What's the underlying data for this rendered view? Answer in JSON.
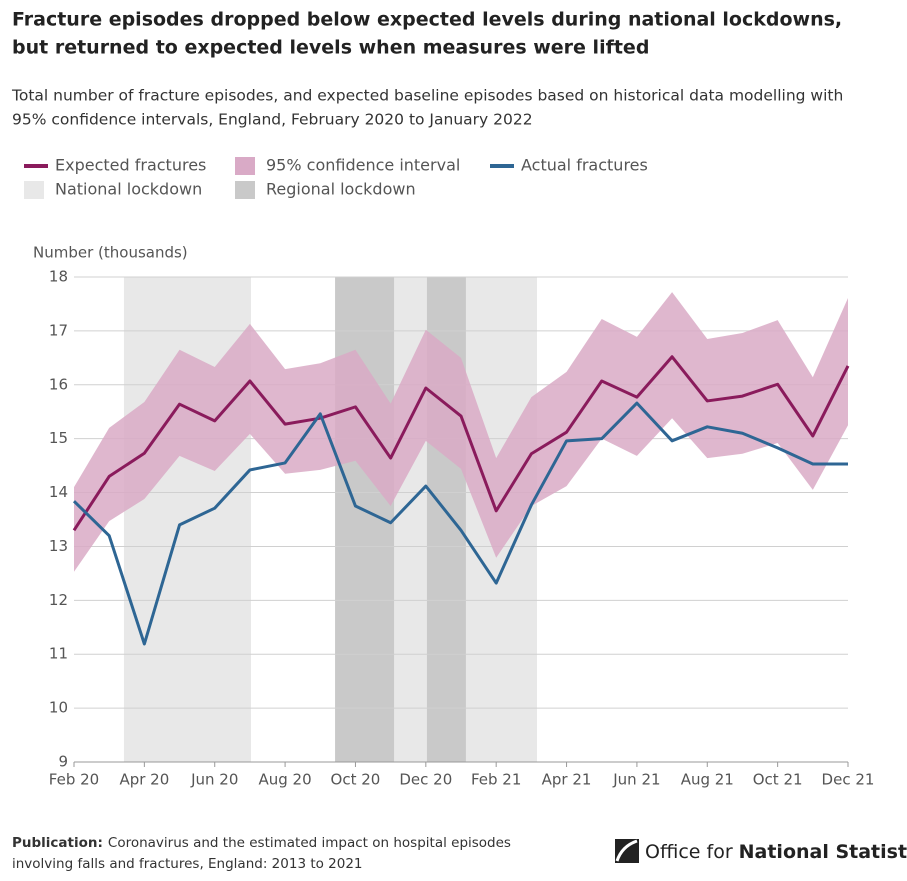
{
  "chart_data": {
    "type": "line",
    "title": [
      "Fracture episodes dropped below expected levels during national lockdowns,",
      "but returned to expected levels when measures were lifted"
    ],
    "subtitle": [
      "Total number of fracture episodes, and expected baseline episodes based on historical data modelling with",
      "95% confidence intervals, England, February 2020 to January 2022"
    ],
    "y_label": "Number (thousands)",
    "x": [
      0,
      1,
      2,
      3,
      4,
      5,
      6,
      7,
      8,
      9,
      10,
      11,
      12,
      13,
      14,
      15,
      16,
      17,
      18,
      19,
      20,
      21,
      22
    ],
    "xlim": [
      0,
      22
    ],
    "xticks": [
      {
        "value": 0,
        "label": "Feb 20"
      },
      {
        "value": 2,
        "label": "Apr 20"
      },
      {
        "value": 4,
        "label": "Jun 20"
      },
      {
        "value": 6,
        "label": "Aug 20"
      },
      {
        "value": 8,
        "label": "Oct 20"
      },
      {
        "value": 10,
        "label": "Dec 20"
      },
      {
        "value": 12,
        "label": "Feb 21"
      },
      {
        "value": 14,
        "label": "Apr 21"
      },
      {
        "value": 16,
        "label": "Jun 21"
      },
      {
        "value": 18,
        "label": "Aug 21"
      },
      {
        "value": 20,
        "label": "Oct 21"
      },
      {
        "value": 22,
        "label": "Dec 21"
      }
    ],
    "ylim": [
      9,
      18
    ],
    "yticks": [
      9,
      10,
      11,
      12,
      13,
      14,
      15,
      16,
      17,
      18
    ],
    "grid": true,
    "periods": [
      {
        "name": "National lockdown",
        "color": "#e8e8e8",
        "spans": [
          [
            1.42,
            5.03
          ],
          [
            9.1,
            10.03
          ],
          [
            11.14,
            13.16
          ]
        ]
      },
      {
        "name": "Regional lockdown",
        "color": "#c9c9c9",
        "spans": [
          [
            7.42,
            9.1
          ],
          [
            10.03,
            11.14
          ]
        ]
      }
    ],
    "band": {
      "name": "95% confidence interval",
      "color": "#d9aac6",
      "upper": [
        14.1,
        15.2,
        15.68,
        16.65,
        16.33,
        17.13,
        16.29,
        16.4,
        16.65,
        15.65,
        17.02,
        16.5,
        14.64,
        15.77,
        16.24,
        17.22,
        16.89,
        17.72,
        16.85,
        16.96,
        17.2,
        16.14,
        17.61
      ],
      "lower": [
        12.53,
        13.47,
        13.88,
        14.68,
        14.4,
        15.09,
        14.35,
        14.42,
        14.59,
        13.75,
        14.96,
        14.44,
        12.79,
        13.75,
        14.12,
        15.0,
        14.68,
        15.38,
        14.64,
        14.72,
        14.92,
        14.05,
        15.25
      ]
    },
    "series": [
      {
        "name": "Expected fractures",
        "color": "#8a1b5c",
        "values": [
          13.3,
          14.3,
          14.73,
          15.64,
          15.33,
          16.07,
          15.27,
          15.38,
          15.59,
          14.64,
          15.94,
          15.42,
          13.66,
          14.72,
          15.12,
          16.07,
          15.77,
          16.52,
          15.7,
          15.79,
          16.01,
          15.05,
          16.35
        ]
      },
      {
        "name": "Actual fractures",
        "color": "#2e6694",
        "values": [
          13.84,
          13.2,
          11.19,
          13.4,
          13.71,
          14.42,
          14.55,
          15.46,
          13.75,
          13.44,
          14.12,
          13.3,
          12.32,
          13.77,
          14.96,
          15.0,
          15.66,
          14.96,
          15.22,
          15.1,
          14.83,
          14.53,
          14.53
        ]
      }
    ],
    "source_label": "Publication:",
    "source": [
      "Coronavirus and the estimated impact on hospital episodes",
      "involving falls and fractures, England: 2013 to 2021"
    ],
    "logo": [
      "Office for",
      "National Statistics"
    ]
  }
}
